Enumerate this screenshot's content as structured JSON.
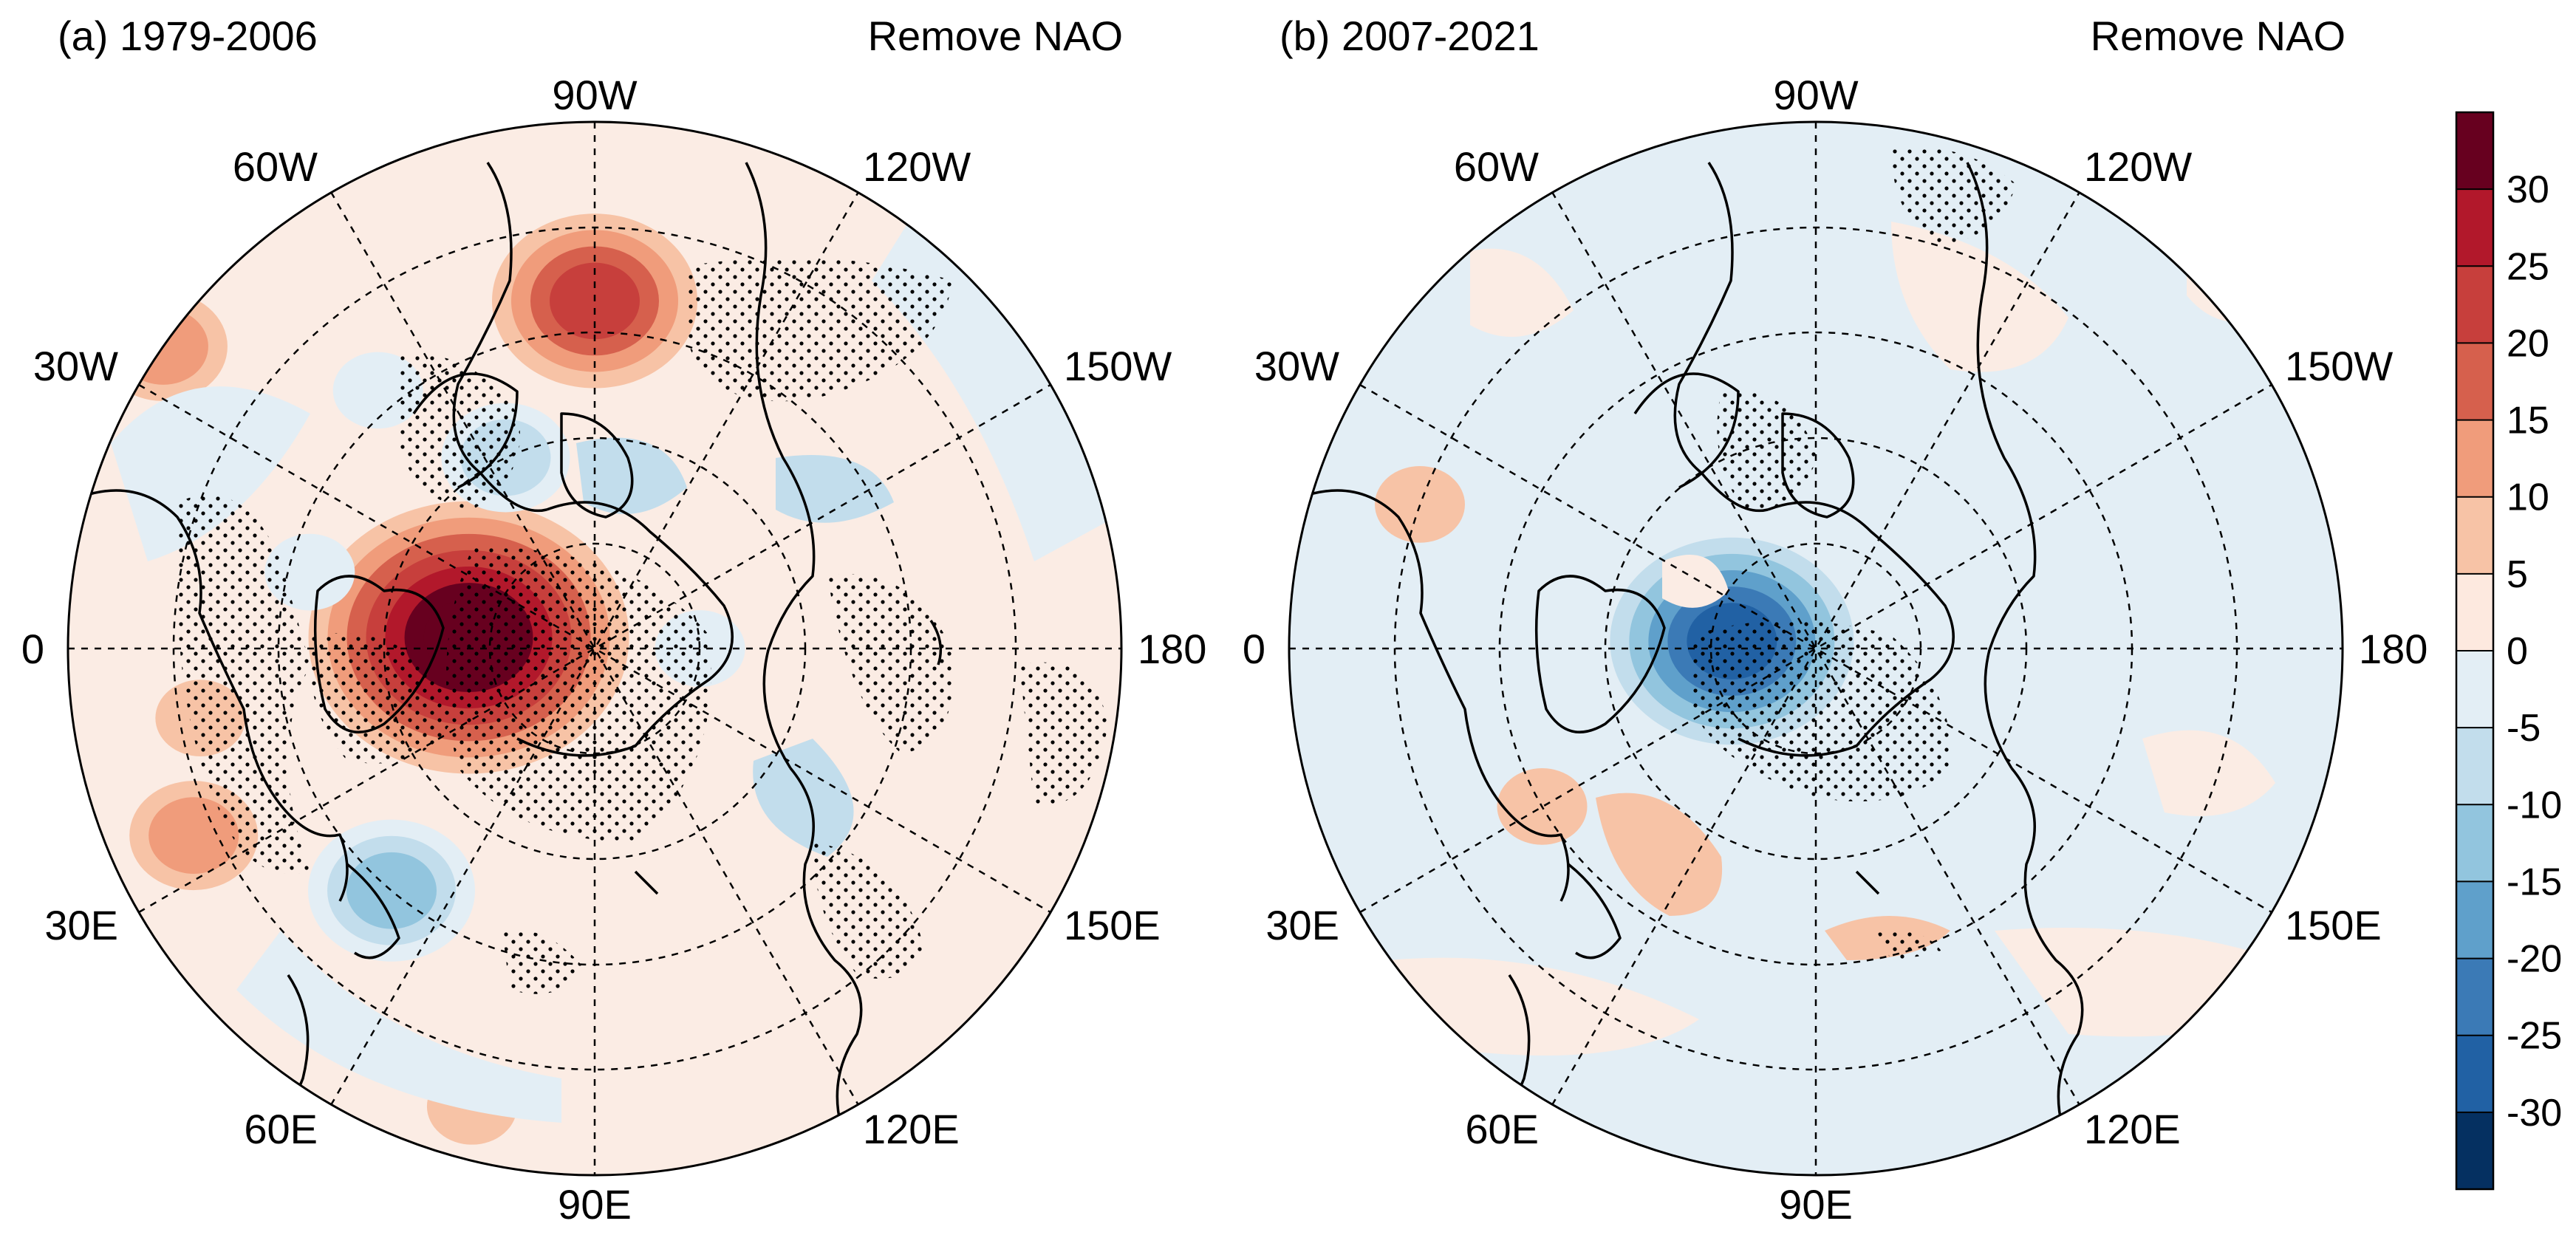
{
  "panels": [
    {
      "title": "(a) 1979-2006",
      "subtitle": "Remove NAO",
      "lon_labels": [
        "90W",
        "60W",
        "120W",
        "30W",
        "150W",
        "0",
        "180",
        "30E",
        "150E",
        "60E",
        "120E",
        "90E"
      ],
      "anomalies": [
        {
          "lon": 95,
          "colat": 12,
          "value": 38
        },
        {
          "lon": 180,
          "colat": 33,
          "value": 22
        },
        {
          "lon": 40,
          "colat": 30,
          "value": -15
        },
        {
          "lon": 125,
          "colat": 50,
          "value": 10
        },
        {
          "lon": 80,
          "colat": 38,
          "value": 8
        },
        {
          "lon": 65,
          "colat": 42,
          "value": 12
        },
        {
          "lon": 155,
          "colat": 20,
          "value": -10
        },
        {
          "lon": 140,
          "colat": 32,
          "value": -8
        },
        {
          "lon": 15,
          "colat": 45,
          "value": 6
        },
        {
          "lon": 270,
          "colat": 10,
          "value": -8
        },
        {
          "lon": 105,
          "colat": 28,
          "value": -6
        }
      ]
    },
    {
      "title": "(b) 2007-2021",
      "subtitle": "Remove NAO",
      "lon_labels": [
        "90W",
        "60W",
        "120W",
        "30W",
        "150W",
        "0",
        "180",
        "30E",
        "150E",
        "60E",
        "120E",
        "90E"
      ],
      "anomalies": [
        {
          "lon": 95,
          "colat": 8,
          "value": -30
        },
        {
          "lon": 200,
          "colat": 20,
          "value": -8
        },
        {
          "lon": 280,
          "colat": 22,
          "value": -6
        },
        {
          "lon": 60,
          "colat": 30,
          "value": 6
        },
        {
          "lon": 110,
          "colat": 40,
          "value": 5
        },
        {
          "lon": 15,
          "colat": 35,
          "value": -4
        }
      ]
    }
  ],
  "colorbar": {
    "ticks": [
      "30",
      "25",
      "20",
      "15",
      "10",
      "5",
      "0",
      "-5",
      "-10",
      "-15",
      "-20",
      "-25",
      "-30"
    ],
    "colors": [
      "#67001f",
      "#b2182b",
      "#c73f3c",
      "#d6604d",
      "#f09c7b",
      "#f7c3a6",
      "#fde9df",
      "#e3eef5",
      "#c2ddec",
      "#92c5de",
      "#5fa0cb",
      "#3b7ab6",
      "#2161a4",
      "#053061"
    ]
  }
}
